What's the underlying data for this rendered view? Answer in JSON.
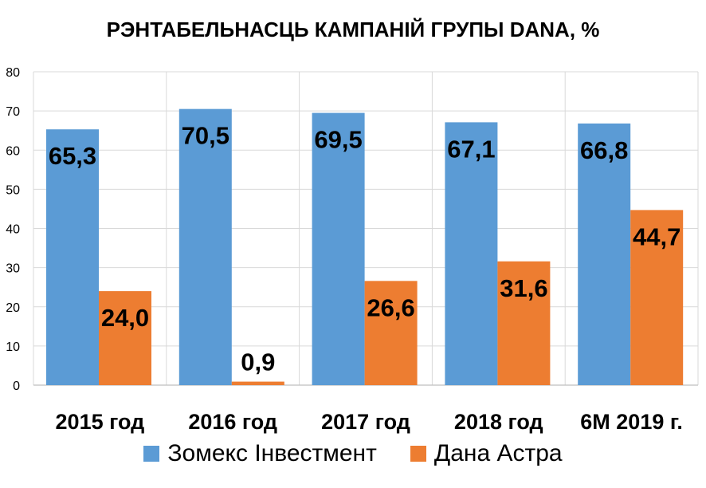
{
  "chart_data": {
    "type": "bar",
    "title": "РЭНТАБЕЛЬНАСЦЬ КАМПАНІЙ ГРУПЫ DANA, %",
    "categories": [
      "2015 год",
      "2016 год",
      "2017 год",
      "2018 год",
      "6M 2019 г."
    ],
    "series": [
      {
        "name": "Зомекс Інвестмент",
        "values": [
          65.3,
          70.5,
          69.5,
          67.1,
          66.8
        ],
        "labels": [
          "65,3",
          "70,5",
          "69,5",
          "67,1",
          "66,8"
        ],
        "color": "#5B9BD5"
      },
      {
        "name": "Дана Астра",
        "values": [
          24.0,
          0.9,
          26.6,
          31.6,
          44.7
        ],
        "labels": [
          "24,0",
          "0,9",
          "26,6",
          "31,6",
          "44,7"
        ],
        "color": "#ED7D31"
      }
    ],
    "ylim": [
      0,
      80
    ],
    "yticks": [
      0,
      10,
      20,
      30,
      40,
      50,
      60,
      70,
      80
    ],
    "grid": true,
    "legend": "bottom"
  }
}
